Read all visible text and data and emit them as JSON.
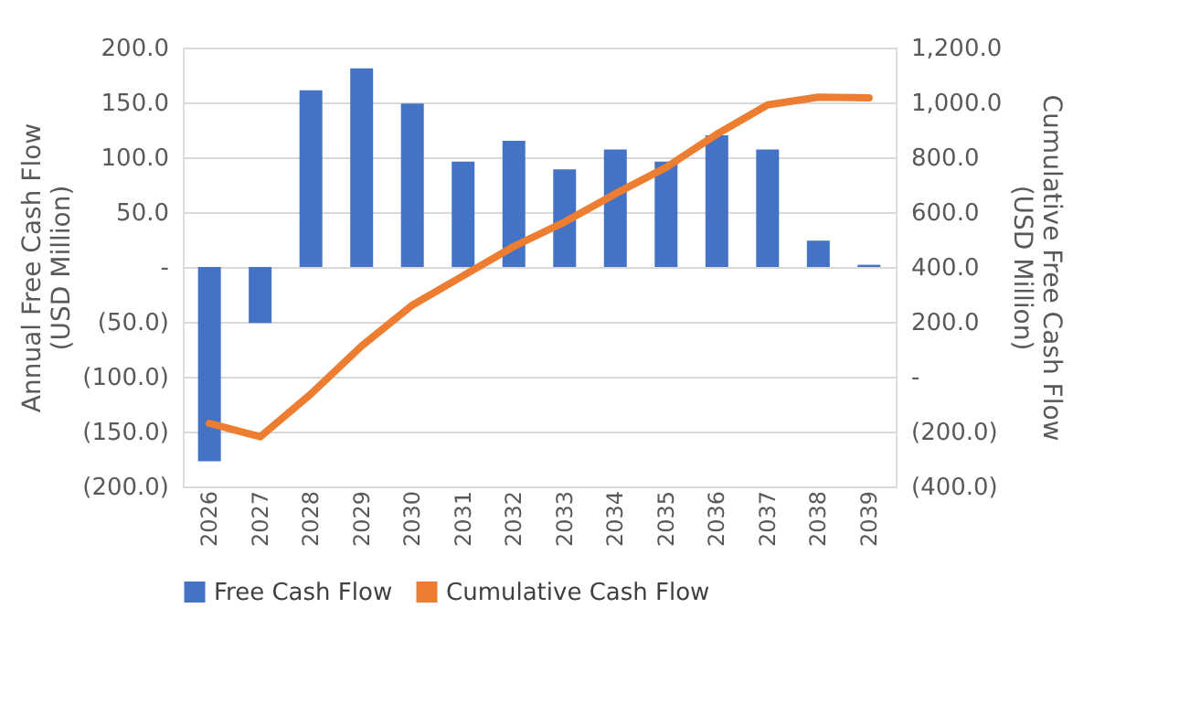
{
  "chart_data": {
    "type": "bar",
    "categories": [
      "2026",
      "2027",
      "2028",
      "2029",
      "2030",
      "2031",
      "2032",
      "2033",
      "2034",
      "2035",
      "2036",
      "2037",
      "2038",
      "2039"
    ],
    "series": [
      {
        "name": "Free Cash Flow",
        "color": "#4472c4",
        "values": [
          -177,
          -51,
          161,
          181,
          149,
          96,
          115,
          89,
          107,
          96,
          120,
          107,
          24,
          2
        ]
      },
      {
        "name": "Cumulative Cash Flow",
        "type": "line",
        "axis": "y2",
        "color": "#ed7d31",
        "values": [
          -170,
          -219,
          -63,
          112,
          261,
          368,
          475,
          564,
          667,
          763,
          884,
          991,
          1019,
          1017
        ]
      }
    ],
    "ylabel": "Annual Free Cash Flow (USD Million)",
    "y2label": "Cumulative Free Cash Flow (USD Million)",
    "ylim": [
      -200,
      200
    ],
    "yticks": [
      {
        "value": -200,
        "label": "(200.0)"
      },
      {
        "value": -150,
        "label": "(150.0)"
      },
      {
        "value": -100,
        "label": "(100.0)"
      },
      {
        "value": -50,
        "label": "(50.0)"
      },
      {
        "value": 0,
        "label": "-"
      },
      {
        "value": 50,
        "label": "50.0"
      },
      {
        "value": 100,
        "label": "100.0"
      },
      {
        "value": 150,
        "label": "150.0"
      },
      {
        "value": 200,
        "label": "200.0"
      }
    ],
    "y2lim": [
      -400,
      1200
    ],
    "y2ticks": [
      {
        "value": -400,
        "label": "(400.0)"
      },
      {
        "value": -200,
        "label": "(200.0)"
      },
      {
        "value": 0,
        "label": "-"
      },
      {
        "value": 200,
        "label": "200.0"
      },
      {
        "value": 400,
        "label": "400.0"
      },
      {
        "value": 600,
        "label": "600.0"
      },
      {
        "value": 800,
        "label": "800.0"
      },
      {
        "value": 1000,
        "label": "1,000.0"
      },
      {
        "value": 1200,
        "label": "1,200.0"
      }
    ],
    "grid": "y",
    "legend": "bottom",
    "line_style": "solid",
    "marker": "none"
  }
}
